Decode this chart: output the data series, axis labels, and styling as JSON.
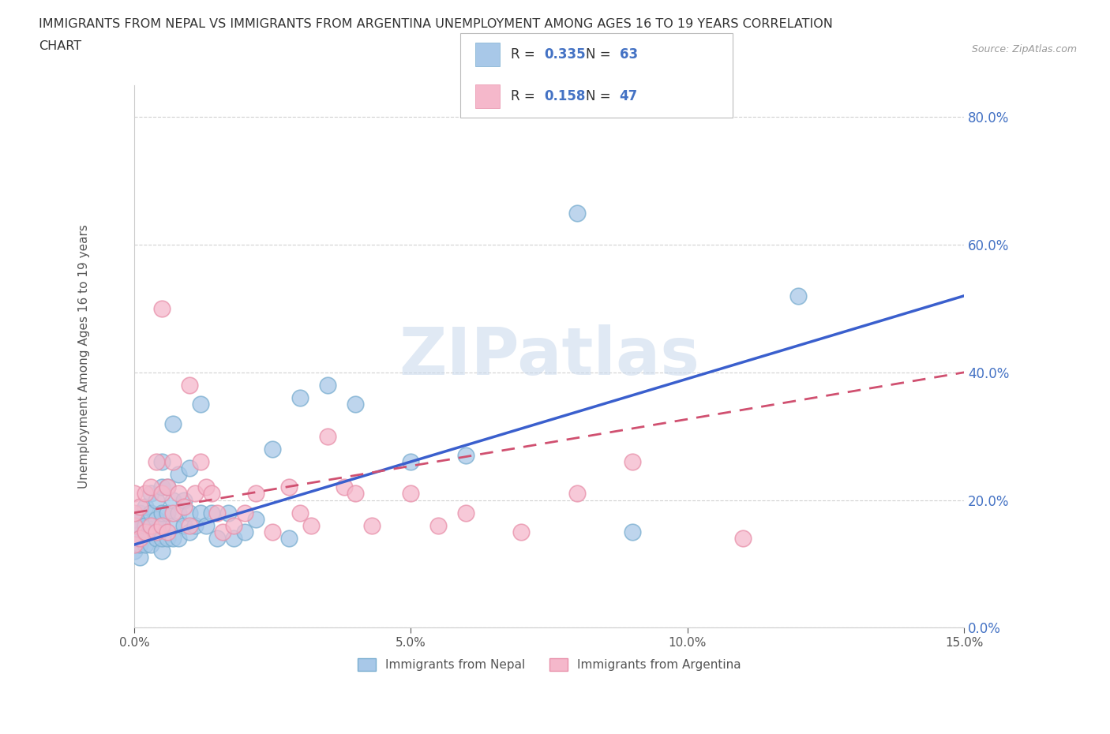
{
  "title_line1": "IMMIGRANTS FROM NEPAL VS IMMIGRANTS FROM ARGENTINA UNEMPLOYMENT AMONG AGES 16 TO 19 YEARS CORRELATION",
  "title_line2": "CHART",
  "source": "Source: ZipAtlas.com",
  "ylabel": "Unemployment Among Ages 16 to 19 years",
  "xlim": [
    0.0,
    0.15
  ],
  "ylim": [
    0.0,
    0.85
  ],
  "yticks": [
    0.0,
    0.2,
    0.4,
    0.6,
    0.8
  ],
  "ytick_labels": [
    "0.0%",
    "20.0%",
    "40.0%",
    "60.0%",
    "80.0%"
  ],
  "xticks": [
    0.0,
    0.05,
    0.1,
    0.15
  ],
  "xtick_labels": [
    "0.0%",
    "5.0%",
    "10.0%",
    "15.0%"
  ],
  "nepal_color": "#a8c8e8",
  "nepal_edge_color": "#7aaed0",
  "argentina_color": "#f5b8cb",
  "argentina_edge_color": "#e890aa",
  "nepal_line_color": "#3a5fcd",
  "argentina_line_color": "#d05070",
  "R_nepal": 0.335,
  "N_nepal": 63,
  "R_argentina": 0.158,
  "N_argentina": 47,
  "watermark": "ZIPatlas",
  "nepal_scatter_x": [
    0.0,
    0.0,
    0.0,
    0.0,
    0.0,
    0.0,
    0.0,
    0.001,
    0.001,
    0.001,
    0.001,
    0.001,
    0.002,
    0.002,
    0.002,
    0.003,
    0.003,
    0.003,
    0.003,
    0.004,
    0.004,
    0.004,
    0.005,
    0.005,
    0.005,
    0.005,
    0.005,
    0.005,
    0.006,
    0.006,
    0.006,
    0.007,
    0.007,
    0.007,
    0.007,
    0.008,
    0.008,
    0.008,
    0.009,
    0.009,
    0.01,
    0.01,
    0.01,
    0.011,
    0.012,
    0.012,
    0.013,
    0.014,
    0.015,
    0.017,
    0.018,
    0.02,
    0.022,
    0.025,
    0.028,
    0.03,
    0.035,
    0.04,
    0.05,
    0.06,
    0.08,
    0.09,
    0.12
  ],
  "nepal_scatter_y": [
    0.12,
    0.13,
    0.14,
    0.15,
    0.15,
    0.16,
    0.17,
    0.11,
    0.13,
    0.14,
    0.16,
    0.18,
    0.13,
    0.16,
    0.19,
    0.13,
    0.15,
    0.18,
    0.21,
    0.14,
    0.17,
    0.2,
    0.12,
    0.14,
    0.16,
    0.18,
    0.22,
    0.26,
    0.14,
    0.18,
    0.22,
    0.14,
    0.16,
    0.2,
    0.32,
    0.14,
    0.18,
    0.24,
    0.16,
    0.2,
    0.15,
    0.18,
    0.25,
    0.16,
    0.18,
    0.35,
    0.16,
    0.18,
    0.14,
    0.18,
    0.14,
    0.15,
    0.17,
    0.28,
    0.14,
    0.36,
    0.38,
    0.35,
    0.26,
    0.27,
    0.65,
    0.15,
    0.52
  ],
  "argentina_scatter_x": [
    0.0,
    0.0,
    0.0,
    0.0,
    0.001,
    0.001,
    0.002,
    0.002,
    0.003,
    0.003,
    0.004,
    0.004,
    0.005,
    0.005,
    0.005,
    0.006,
    0.006,
    0.007,
    0.007,
    0.008,
    0.009,
    0.01,
    0.01,
    0.011,
    0.012,
    0.013,
    0.014,
    0.015,
    0.016,
    0.018,
    0.02,
    0.022,
    0.025,
    0.028,
    0.03,
    0.032,
    0.035,
    0.038,
    0.04,
    0.043,
    0.05,
    0.055,
    0.06,
    0.07,
    0.08,
    0.09,
    0.11
  ],
  "argentina_scatter_y": [
    0.13,
    0.16,
    0.18,
    0.21,
    0.14,
    0.19,
    0.15,
    0.21,
    0.16,
    0.22,
    0.15,
    0.26,
    0.16,
    0.21,
    0.5,
    0.15,
    0.22,
    0.18,
    0.26,
    0.21,
    0.19,
    0.16,
    0.38,
    0.21,
    0.26,
    0.22,
    0.21,
    0.18,
    0.15,
    0.16,
    0.18,
    0.21,
    0.15,
    0.22,
    0.18,
    0.16,
    0.3,
    0.22,
    0.21,
    0.16,
    0.21,
    0.16,
    0.18,
    0.15,
    0.21,
    0.26,
    0.14
  ],
  "nepal_trend_x": [
    0.0,
    0.15
  ],
  "nepal_trend_y": [
    0.13,
    0.52
  ],
  "argentina_trend_x": [
    0.0,
    0.15
  ],
  "argentina_trend_y": [
    0.18,
    0.4
  ],
  "legend_nepal_label": "Immigrants from Nepal",
  "legend_argentina_label": "Immigrants from Argentina"
}
